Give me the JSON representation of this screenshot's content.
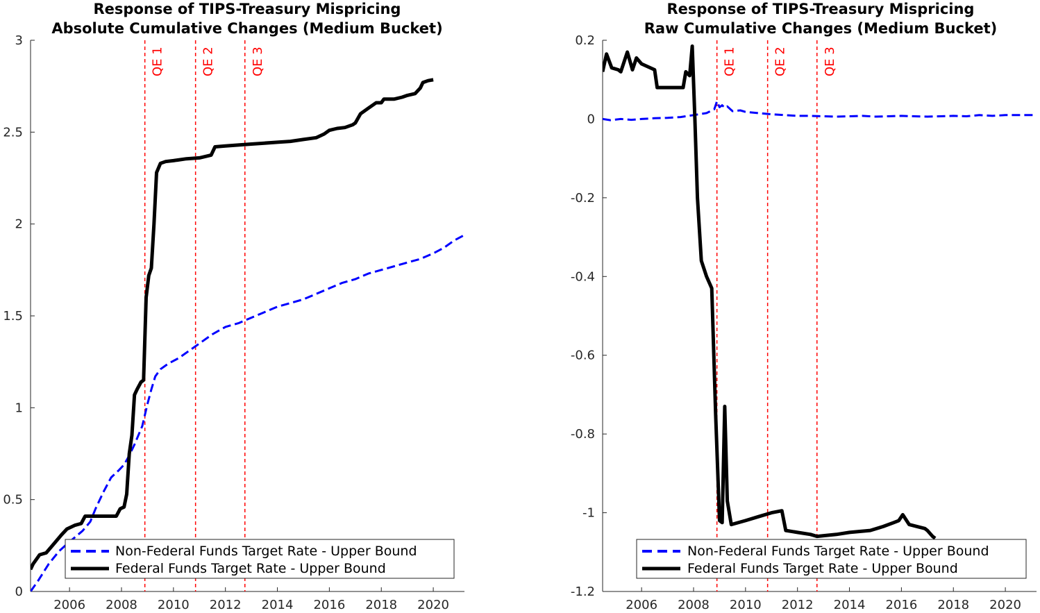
{
  "chart_data": [
    {
      "type": "line",
      "title": "Response of TIPS-Treasury Mispricing",
      "subtitle": "Absolute Cumulative Changes (Medium Bucket)",
      "xlabel": "",
      "ylabel": "",
      "xlim": [
        2004.5,
        2021.2
      ],
      "ylim": [
        0,
        3
      ],
      "x_ticks": [
        "2006",
        "2008",
        "2010",
        "2012",
        "2014",
        "2016",
        "2018",
        "2020"
      ],
      "y_ticks": [
        "0",
        "0.5",
        "1",
        "1.5",
        "2",
        "2.5",
        "3"
      ],
      "grid": false,
      "legend_position": "bottom-right",
      "vlines": [
        {
          "x": 2008.9,
          "label": "QE 1",
          "color": "#ff0000"
        },
        {
          "x": 2010.85,
          "label": "QE 2",
          "color": "#ff0000"
        },
        {
          "x": 2012.75,
          "label": "QE 3",
          "color": "#ff0000"
        }
      ],
      "series": [
        {
          "name": "Non-Federal Funds Target Rate - Upper Bound",
          "color": "#0000ff",
          "style": "dashed",
          "points": [
            [
              2004.5,
              0.0
            ],
            [
              2004.8,
              0.06
            ],
            [
              2005.2,
              0.15
            ],
            [
              2005.6,
              0.22
            ],
            [
              2006.0,
              0.27
            ],
            [
              2006.5,
              0.33
            ],
            [
              2006.8,
              0.38
            ],
            [
              2007.0,
              0.45
            ],
            [
              2007.3,
              0.54
            ],
            [
              2007.6,
              0.62
            ],
            [
              2007.9,
              0.66
            ],
            [
              2008.1,
              0.69
            ],
            [
              2008.3,
              0.74
            ],
            [
              2008.5,
              0.8
            ],
            [
              2008.8,
              0.9
            ],
            [
              2009.0,
              1.02
            ],
            [
              2009.15,
              1.1
            ],
            [
              2009.3,
              1.17
            ],
            [
              2009.5,
              1.21
            ],
            [
              2009.8,
              1.24
            ],
            [
              2010.2,
              1.27
            ],
            [
              2010.6,
              1.31
            ],
            [
              2011.0,
              1.35
            ],
            [
              2011.5,
              1.4
            ],
            [
              2012.0,
              1.44
            ],
            [
              2012.5,
              1.46
            ],
            [
              2013.0,
              1.49
            ],
            [
              2013.5,
              1.52
            ],
            [
              2014.0,
              1.55
            ],
            [
              2014.5,
              1.57
            ],
            [
              2015.0,
              1.59
            ],
            [
              2015.5,
              1.62
            ],
            [
              2016.0,
              1.65
            ],
            [
              2016.5,
              1.68
            ],
            [
              2017.0,
              1.7
            ],
            [
              2017.5,
              1.73
            ],
            [
              2018.0,
              1.75
            ],
            [
              2018.5,
              1.77
            ],
            [
              2019.0,
              1.79
            ],
            [
              2019.5,
              1.81
            ],
            [
              2020.0,
              1.84
            ],
            [
              2020.4,
              1.87
            ],
            [
              2020.8,
              1.91
            ],
            [
              2021.2,
              1.94
            ]
          ]
        },
        {
          "name": "Federal Funds Target Rate - Upper Bound",
          "color": "#000000",
          "style": "solid",
          "points": [
            [
              2004.5,
              0.12
            ],
            [
              2004.6,
              0.15
            ],
            [
              2004.85,
              0.2
            ],
            [
              2005.1,
              0.21
            ],
            [
              2005.4,
              0.26
            ],
            [
              2005.7,
              0.31
            ],
            [
              2005.9,
              0.34
            ],
            [
              2006.2,
              0.36
            ],
            [
              2006.45,
              0.37
            ],
            [
              2006.6,
              0.41
            ],
            [
              2007.0,
              0.41
            ],
            [
              2007.5,
              0.41
            ],
            [
              2007.8,
              0.41
            ],
            [
              2007.95,
              0.45
            ],
            [
              2008.1,
              0.46
            ],
            [
              2008.2,
              0.53
            ],
            [
              2008.3,
              0.75
            ],
            [
              2008.4,
              0.85
            ],
            [
              2008.5,
              1.07
            ],
            [
              2008.6,
              1.1
            ],
            [
              2008.75,
              1.14
            ],
            [
              2008.85,
              1.15
            ],
            [
              2008.95,
              1.6
            ],
            [
              2009.05,
              1.72
            ],
            [
              2009.15,
              1.76
            ],
            [
              2009.25,
              2.0
            ],
            [
              2009.35,
              2.28
            ],
            [
              2009.5,
              2.33
            ],
            [
              2009.7,
              2.34
            ],
            [
              2010.0,
              2.345
            ],
            [
              2010.5,
              2.355
            ],
            [
              2011.0,
              2.36
            ],
            [
              2011.45,
              2.375
            ],
            [
              2011.6,
              2.42
            ],
            [
              2012.0,
              2.425
            ],
            [
              2012.5,
              2.43
            ],
            [
              2013.0,
              2.435
            ],
            [
              2013.5,
              2.44
            ],
            [
              2014.0,
              2.445
            ],
            [
              2014.5,
              2.45
            ],
            [
              2015.0,
              2.46
            ],
            [
              2015.5,
              2.47
            ],
            [
              2015.8,
              2.49
            ],
            [
              2016.0,
              2.51
            ],
            [
              2016.3,
              2.52
            ],
            [
              2016.6,
              2.525
            ],
            [
              2016.9,
              2.54
            ],
            [
              2017.0,
              2.55
            ],
            [
              2017.2,
              2.6
            ],
            [
              2017.5,
              2.63
            ],
            [
              2017.8,
              2.66
            ],
            [
              2018.0,
              2.66
            ],
            [
              2018.1,
              2.68
            ],
            [
              2018.5,
              2.68
            ],
            [
              2018.8,
              2.69
            ],
            [
              2019.0,
              2.7
            ],
            [
              2019.3,
              2.71
            ],
            [
              2019.5,
              2.74
            ],
            [
              2019.6,
              2.77
            ],
            [
              2019.8,
              2.78
            ],
            [
              2020.0,
              2.785
            ]
          ]
        }
      ]
    },
    {
      "type": "line",
      "title": "Response of TIPS-Treasury Mispricing",
      "subtitle": "Raw Cumulative Changes (Medium Bucket)",
      "xlabel": "",
      "ylabel": "",
      "xlim": [
        2004.5,
        2021.2
      ],
      "ylim": [
        -1.2,
        0.2
      ],
      "x_ticks": [
        "2006",
        "2008",
        "2010",
        "2012",
        "2014",
        "2016",
        "2018",
        "2020"
      ],
      "y_ticks": [
        "-1.2",
        "-1",
        "-0.8",
        "-0.6",
        "-0.4",
        "-0.2",
        "0",
        "0.2"
      ],
      "grid": false,
      "legend_position": "bottom-right",
      "vlines": [
        {
          "x": 2008.9,
          "label": "QE 1",
          "color": "#ff0000"
        },
        {
          "x": 2010.85,
          "label": "QE 2",
          "color": "#ff0000"
        },
        {
          "x": 2012.75,
          "label": "QE 3",
          "color": "#ff0000"
        }
      ],
      "series": [
        {
          "name": "Non-Federal Funds Target Rate - Upper Bound",
          "color": "#0000ff",
          "style": "dashed",
          "points": [
            [
              2004.5,
              0.0
            ],
            [
              2004.8,
              -0.003
            ],
            [
              2005.2,
              0.0
            ],
            [
              2005.6,
              -0.002
            ],
            [
              2006.0,
              0.0
            ],
            [
              2006.5,
              0.002
            ],
            [
              2007.0,
              0.003
            ],
            [
              2007.5,
              0.005
            ],
            [
              2008.0,
              0.01
            ],
            [
              2008.5,
              0.015
            ],
            [
              2008.8,
              0.025
            ],
            [
              2008.9,
              0.045
            ],
            [
              2009.0,
              0.03
            ],
            [
              2009.1,
              0.035
            ],
            [
              2009.2,
              0.028
            ],
            [
              2009.3,
              0.032
            ],
            [
              2009.5,
              0.02
            ],
            [
              2009.8,
              0.022
            ],
            [
              2010.0,
              0.018
            ],
            [
              2010.5,
              0.015
            ],
            [
              2011.0,
              0.012
            ],
            [
              2011.5,
              0.01
            ],
            [
              2012.0,
              0.008
            ],
            [
              2012.5,
              0.008
            ],
            [
              2013.0,
              0.007
            ],
            [
              2013.5,
              0.006
            ],
            [
              2014.0,
              0.007
            ],
            [
              2014.5,
              0.008
            ],
            [
              2015.0,
              0.006
            ],
            [
              2015.5,
              0.007
            ],
            [
              2016.0,
              0.008
            ],
            [
              2016.5,
              0.007
            ],
            [
              2017.0,
              0.006
            ],
            [
              2017.5,
              0.007
            ],
            [
              2018.0,
              0.008
            ],
            [
              2018.5,
              0.007
            ],
            [
              2019.0,
              0.01
            ],
            [
              2019.5,
              0.008
            ],
            [
              2020.0,
              0.01
            ],
            [
              2020.5,
              0.01
            ],
            [
              2021.0,
              0.01
            ],
            [
              2021.2,
              0.01
            ]
          ]
        },
        {
          "name": "Federal Funds Target Rate - Upper Bound",
          "color": "#000000",
          "style": "solid",
          "points": [
            [
              2004.5,
              0.12
            ],
            [
              2004.65,
              0.165
            ],
            [
              2004.85,
              0.13
            ],
            [
              2005.1,
              0.125
            ],
            [
              2005.2,
              0.12
            ],
            [
              2005.45,
              0.17
            ],
            [
              2005.65,
              0.125
            ],
            [
              2005.8,
              0.155
            ],
            [
              2006.0,
              0.14
            ],
            [
              2006.5,
              0.125
            ],
            [
              2006.6,
              0.08
            ],
            [
              2007.0,
              0.08
            ],
            [
              2007.6,
              0.08
            ],
            [
              2007.7,
              0.12
            ],
            [
              2007.85,
              0.11
            ],
            [
              2007.95,
              0.185
            ],
            [
              2008.05,
              0.0
            ],
            [
              2008.15,
              -0.2
            ],
            [
              2008.3,
              -0.36
            ],
            [
              2008.5,
              -0.4
            ],
            [
              2008.7,
              -0.43
            ],
            [
              2008.85,
              -0.75
            ],
            [
              2009.0,
              -1.02
            ],
            [
              2009.1,
              -1.025
            ],
            [
              2009.2,
              -0.73
            ],
            [
              2009.3,
              -0.97
            ],
            [
              2009.45,
              -1.03
            ],
            [
              2010.0,
              -1.02
            ],
            [
              2010.5,
              -1.01
            ],
            [
              2011.0,
              -1.0
            ],
            [
              2011.4,
              -0.995
            ],
            [
              2011.55,
              -1.045
            ],
            [
              2012.0,
              -1.05
            ],
            [
              2012.5,
              -1.055
            ],
            [
              2012.75,
              -1.06
            ],
            [
              2013.5,
              -1.055
            ],
            [
              2014.0,
              -1.05
            ],
            [
              2014.8,
              -1.045
            ],
            [
              2015.3,
              -1.035
            ],
            [
              2015.7,
              -1.025
            ],
            [
              2015.9,
              -1.02
            ],
            [
              2016.05,
              -1.005
            ],
            [
              2016.3,
              -1.03
            ],
            [
              2016.6,
              -1.035
            ],
            [
              2016.9,
              -1.04
            ],
            [
              2017.0,
              -1.045
            ],
            [
              2017.2,
              -1.06
            ],
            [
              2017.3,
              -1.065
            ]
          ]
        }
      ]
    }
  ]
}
